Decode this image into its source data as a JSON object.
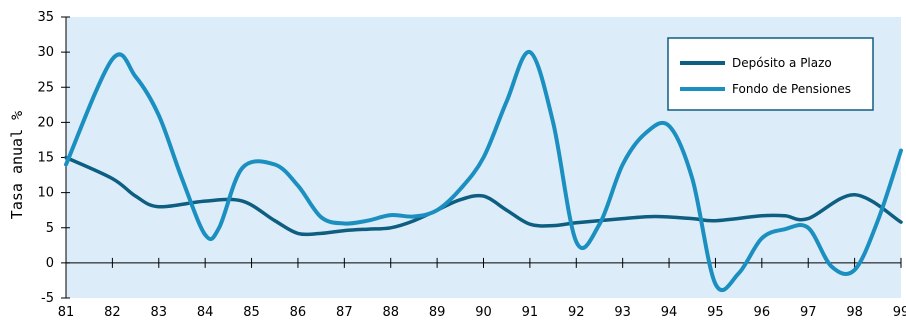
{
  "chart_data": {
    "type": "line",
    "ylabel": "Tasa anual %",
    "ylim": [
      -5,
      35
    ],
    "yticks": [
      35,
      30,
      25,
      20,
      15,
      10,
      5,
      0,
      -5
    ],
    "xticks": [
      "81",
      "82",
      "83",
      "84",
      "85",
      "86",
      "87",
      "88",
      "89",
      "90",
      "91",
      "92",
      "93",
      "94",
      "95",
      "96",
      "97",
      "98",
      "99"
    ],
    "xlim": [
      81,
      99
    ],
    "grid": false,
    "legend_position": "top-right",
    "background_color": "#dcedf9",
    "series": [
      {
        "name": "Depósito a Plazo",
        "color": "#0e5e82",
        "x": [
          81,
          82,
          82.5,
          83,
          84,
          84.8,
          85.5,
          86,
          86.5,
          87,
          87.5,
          88,
          88.5,
          89,
          89.5,
          90,
          90.5,
          91,
          91.5,
          92,
          93,
          93.7,
          94.5,
          95,
          96,
          96.5,
          97,
          98,
          99
        ],
        "y": [
          15,
          12,
          9.5,
          8,
          8.8,
          8.8,
          6,
          4.2,
          4.2,
          4.6,
          4.8,
          5,
          6,
          7.5,
          9,
          9.5,
          7.5,
          5.5,
          5.3,
          5.7,
          6.3,
          6.6,
          6.3,
          6,
          6.7,
          6.7,
          6.3,
          9.7,
          5.8
        ]
      },
      {
        "name": "Fondo de Pensiones",
        "color": "#1b8fc0",
        "x": [
          81,
          82,
          82.5,
          83,
          83.5,
          84,
          84.3,
          84.8,
          85.5,
          86,
          86.5,
          87,
          87.5,
          88,
          88.5,
          89,
          89.5,
          90,
          90.5,
          91,
          91.5,
          92,
          92.5,
          93,
          93.5,
          94,
          94.5,
          95,
          95.5,
          96,
          96.5,
          97,
          97.5,
          98,
          98.5,
          99
        ],
        "y": [
          14,
          29,
          26.5,
          21,
          12,
          4,
          5,
          13.5,
          14,
          11,
          6.5,
          5.6,
          6,
          6.8,
          6.6,
          7.5,
          10.5,
          15,
          23,
          30,
          20,
          3,
          5.5,
          14,
          18.5,
          19.5,
          12,
          -3,
          -1.5,
          3.5,
          4.8,
          5,
          -0.5,
          -1,
          6,
          16
        ]
      }
    ]
  }
}
